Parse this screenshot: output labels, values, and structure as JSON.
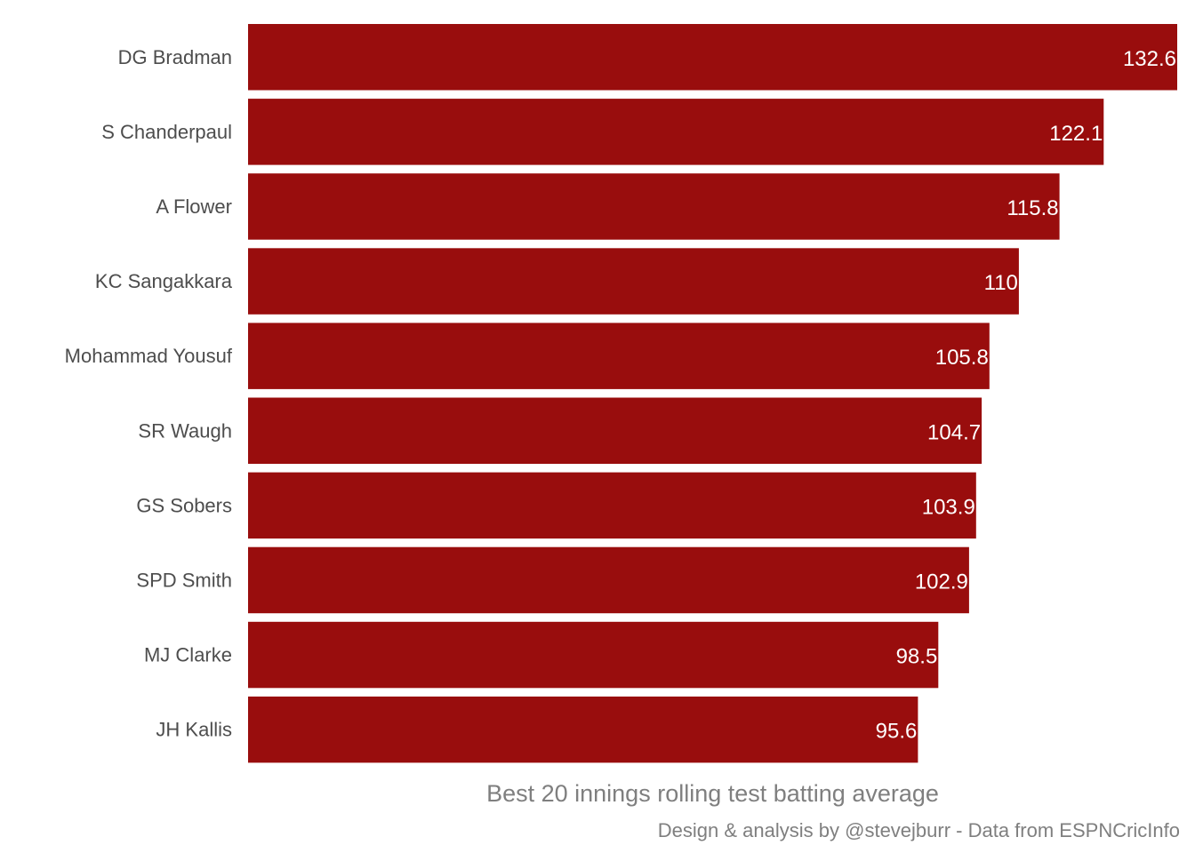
{
  "chart_data": {
    "type": "bar",
    "orientation": "horizontal",
    "categories": [
      "DG Bradman",
      "S Chanderpaul",
      "A Flower",
      "KC Sangakkara",
      "Mohammad Yousuf",
      "SR Waugh",
      "GS Sobers",
      "SPD Smith",
      "MJ Clarke",
      "JH Kallis"
    ],
    "values": [
      132.6,
      122.1,
      115.8,
      110,
      105.8,
      104.7,
      103.9,
      102.9,
      98.5,
      95.6
    ],
    "value_labels": [
      "132.6",
      "122.1",
      "115.8",
      "110",
      "105.8",
      "104.7",
      "103.9",
      "102.9",
      "98.5",
      "95.6"
    ],
    "xlabel": "Best 20 innings rolling test batting average",
    "ylabel": "",
    "caption": "Design & analysis by @stevejburr - Data from ESPNCricInfo",
    "xlim": [
      0,
      132.6
    ],
    "grid": false,
    "bar_color": "#990d0d"
  }
}
